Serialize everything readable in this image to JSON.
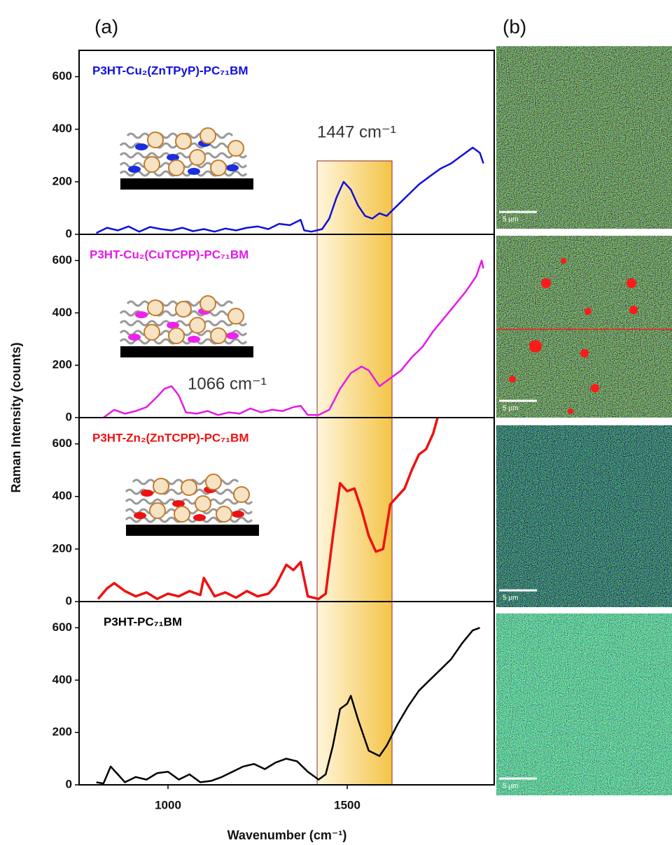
{
  "figure": {
    "panel_labels": [
      "(a)",
      "(b)"
    ],
    "y_label": "Raman Intensity (counts)",
    "x_label": "Wavenumber (cm⁻¹)",
    "highlight_x": [
      1416,
      1625
    ],
    "scale_bars": [
      "5 µm",
      "5 µm",
      "5 µm",
      "5 µm"
    ]
  },
  "chart_data": [
    {
      "type": "line",
      "xlim": [
        752,
        1910
      ],
      "ylim": [
        0,
        700
      ],
      "yticks": [
        0,
        200,
        400,
        600
      ],
      "annotation": "1447 cm⁻¹",
      "x": [
        800,
        830,
        860,
        890,
        920,
        950,
        980,
        1010,
        1040,
        1070,
        1100,
        1130,
        1160,
        1190,
        1220,
        1250,
        1280,
        1310,
        1340,
        1370,
        1380,
        1400,
        1430,
        1450,
        1470,
        1490,
        1510,
        1530,
        1550,
        1570,
        1590,
        1610,
        1640,
        1670,
        1700,
        1730,
        1760,
        1790,
        1820,
        1850,
        1870,
        1880
      ],
      "series": [
        {
          "name": "P3HT-Cu₂(ZnTPyP)-PC₇₁BM",
          "color": "#1010dd",
          "values": [
            5,
            25,
            15,
            30,
            10,
            28,
            20,
            15,
            25,
            12,
            20,
            10,
            22,
            15,
            25,
            30,
            20,
            40,
            35,
            55,
            15,
            10,
            20,
            60,
            140,
            200,
            170,
            110,
            70,
            60,
            80,
            70,
            110,
            150,
            190,
            220,
            250,
            270,
            300,
            330,
            310,
            270
          ]
        }
      ]
    },
    {
      "type": "line",
      "xlim": [
        752,
        1910
      ],
      "ylim": [
        0,
        700
      ],
      "yticks": [
        0,
        200,
        400,
        600
      ],
      "annotation": "1066 cm⁻¹",
      "x": [
        820,
        850,
        880,
        910,
        940,
        970,
        990,
        1010,
        1030,
        1050,
        1080,
        1110,
        1140,
        1170,
        1200,
        1230,
        1260,
        1290,
        1320,
        1350,
        1370,
        1390,
        1420,
        1450,
        1480,
        1510,
        1540,
        1560,
        1590,
        1620,
        1650,
        1680,
        1710,
        1740,
        1770,
        1800,
        1830,
        1860,
        1875,
        1880
      ],
      "series": [
        {
          "name": "P3HT-Cu₂(CuTCPP)-PC₇₁BM",
          "color": "#e619e6",
          "values": [
            0,
            30,
            15,
            25,
            40,
            80,
            110,
            120,
            85,
            20,
            15,
            25,
            10,
            20,
            15,
            35,
            20,
            30,
            25,
            40,
            45,
            10,
            10,
            30,
            110,
            170,
            195,
            180,
            120,
            150,
            180,
            230,
            270,
            330,
            380,
            430,
            480,
            540,
            600,
            570
          ]
        }
      ]
    },
    {
      "type": "line",
      "xlim": [
        752,
        1910
      ],
      "ylim": [
        0,
        700
      ],
      "yticks": [
        0,
        200,
        400,
        600
      ],
      "x": [
        805,
        830,
        850,
        880,
        910,
        940,
        970,
        1000,
        1030,
        1060,
        1090,
        1100,
        1130,
        1160,
        1190,
        1220,
        1250,
        1280,
        1300,
        1330,
        1350,
        1370,
        1390,
        1420,
        1440,
        1460,
        1480,
        1500,
        1520,
        1540,
        1560,
        1580,
        1600,
        1620,
        1640,
        1660,
        1680,
        1700,
        1720,
        1740,
        1752
      ],
      "series": [
        {
          "name": "P3HT-Zn₂(ZnTCPP)-PC₇₁BM",
          "color": "#ee1111",
          "values": [
            10,
            50,
            70,
            40,
            20,
            35,
            10,
            30,
            20,
            40,
            25,
            90,
            20,
            35,
            15,
            40,
            20,
            30,
            60,
            140,
            120,
            150,
            20,
            10,
            30,
            250,
            450,
            420,
            430,
            350,
            250,
            190,
            200,
            370,
            400,
            430,
            500,
            560,
            580,
            640,
            700
          ]
        }
      ]
    },
    {
      "type": "line",
      "xlim": [
        752,
        1910
      ],
      "ylim": [
        0,
        700
      ],
      "yticks": [
        0,
        200,
        400,
        600
      ],
      "xticks": [
        1000,
        1500
      ],
      "x": [
        800,
        820,
        840,
        860,
        880,
        910,
        940,
        970,
        1000,
        1030,
        1060,
        1090,
        1120,
        1150,
        1180,
        1210,
        1240,
        1270,
        1300,
        1330,
        1360,
        1390,
        1420,
        1440,
        1460,
        1480,
        1500,
        1510,
        1530,
        1560,
        1590,
        1610,
        1640,
        1670,
        1700,
        1730,
        1760,
        1790,
        1820,
        1850,
        1870
      ],
      "series": [
        {
          "name": "P3HT-PC₇₁BM",
          "color": "#000000",
          "values": [
            10,
            5,
            70,
            40,
            10,
            30,
            20,
            45,
            50,
            20,
            40,
            10,
            15,
            30,
            50,
            70,
            80,
            60,
            85,
            100,
            90,
            50,
            20,
            40,
            150,
            290,
            310,
            340,
            250,
            130,
            110,
            150,
            230,
            300,
            360,
            400,
            440,
            480,
            540,
            590,
            600
          ]
        }
      ]
    }
  ]
}
